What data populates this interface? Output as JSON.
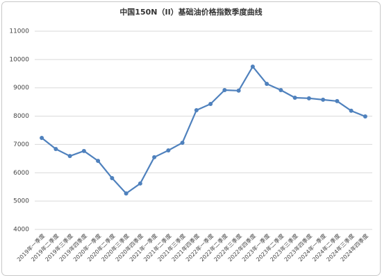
{
  "chart_data": {
    "type": "line",
    "title": "中国150N（II）基础油价格指数季度曲线",
    "categories": [
      "2019年一季度",
      "2019年二季度",
      "2019年三季度",
      "2019年四季度",
      "2020年一季度",
      "2020年二季度",
      "2020年三季度",
      "2020年四季度",
      "2021年一季度",
      "2021年二季度",
      "2021年三季度",
      "2021年四季度",
      "2022年一季度",
      "2022年二季度",
      "2022年三季度",
      "2022年四季度",
      "2023年一季度",
      "2023年二季度",
      "2023年三季度",
      "2023年四季度",
      "2024年一季度",
      "2024年二季度",
      "2024年三季度",
      "2024年四季度"
    ],
    "values": [
      7230,
      6840,
      6590,
      6770,
      6420,
      5810,
      5270,
      5620,
      6550,
      6790,
      7060,
      8210,
      8430,
      8920,
      8900,
      9750,
      9140,
      8920,
      8650,
      8630,
      8580,
      8530,
      8190,
      7990
    ],
    "color": "#4f81bd",
    "ylim": [
      4000,
      11000
    ],
    "yticks": [
      4000,
      5000,
      6000,
      7000,
      8000,
      9000,
      10000,
      11000
    ],
    "grid": true
  }
}
